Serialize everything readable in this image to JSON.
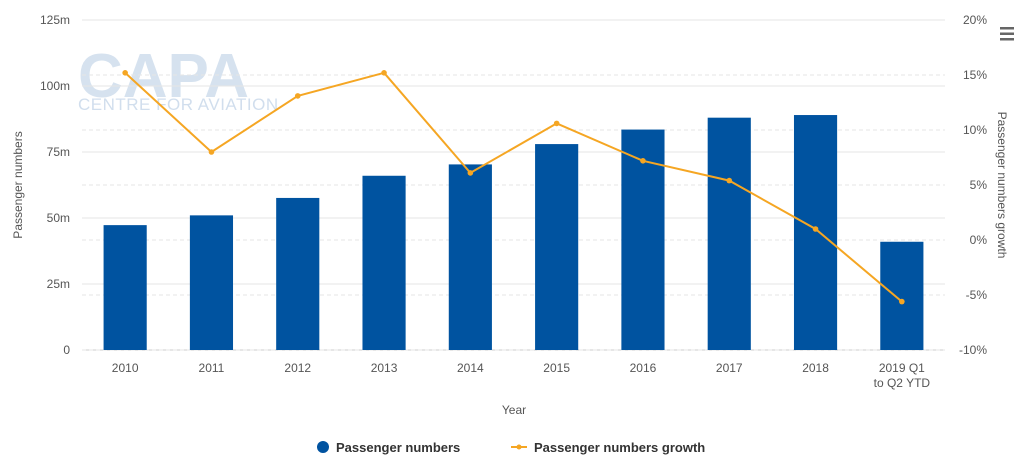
{
  "watermark": {
    "brand": "CAPA",
    "tagline": "CENTRE FOR AVIATION"
  },
  "menu_icon": "hamburger-menu-icon",
  "colors": {
    "bar": "#0053a0",
    "line": "#f5a623",
    "grid": "#e6e6e6",
    "axis": "#cccccc"
  },
  "chart_data": {
    "type": "bar",
    "categories": [
      "2010",
      "2011",
      "2012",
      "2013",
      "2014",
      "2015",
      "2016",
      "2017",
      "2018",
      "2019 Q1 to Q2 YTD"
    ],
    "series": [
      {
        "name": "Passenger numbers",
        "type": "bar",
        "axis": "left",
        "values": [
          47.3,
          51.0,
          57.6,
          66.0,
          70.3,
          78.0,
          83.5,
          88.0,
          89.0,
          41.0
        ]
      },
      {
        "name": "Passenger numbers growth",
        "type": "line",
        "axis": "right",
        "values": [
          15.2,
          8.0,
          13.1,
          15.2,
          6.1,
          10.6,
          7.2,
          5.4,
          1.0,
          -5.6
        ]
      }
    ],
    "xlabel": "Year",
    "ylabel": "Passenger numbers",
    "y2label": "Passenger numbers growth",
    "ylim": [
      0,
      125
    ],
    "y2lim": [
      -10,
      20
    ],
    "yticks": [
      "0",
      "25m",
      "50m",
      "75m",
      "100m",
      "125m"
    ],
    "y2ticks": [
      "-10%",
      "-5%",
      "0%",
      "5%",
      "10%",
      "15%",
      "20%"
    ],
    "grid": true,
    "legend": "bottom-center"
  }
}
